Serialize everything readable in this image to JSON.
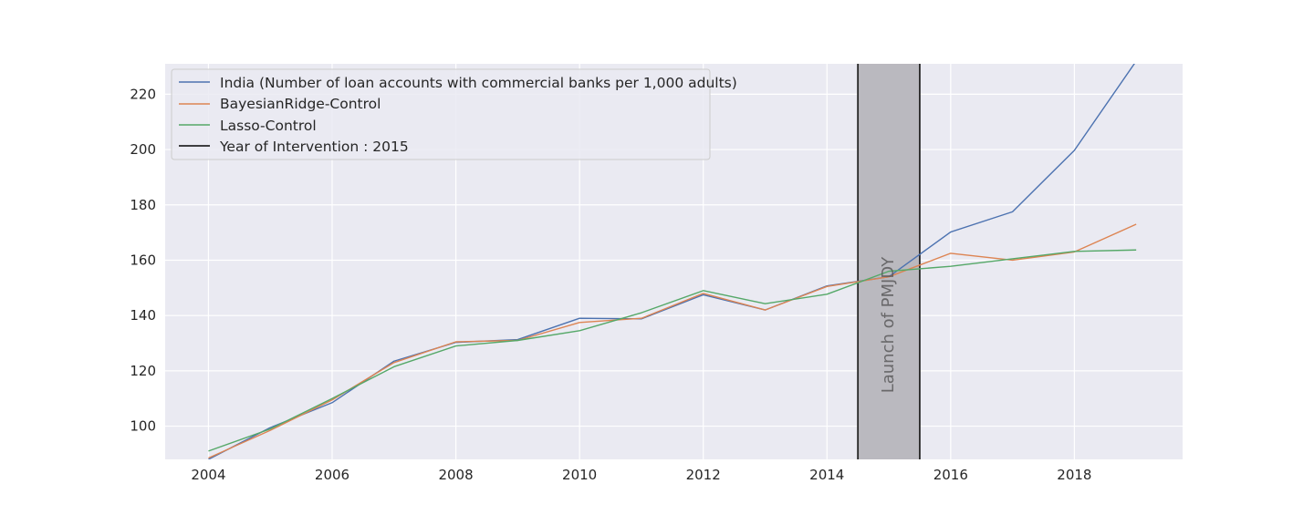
{
  "chart_data": {
    "type": "line",
    "title": "",
    "xlabel": "",
    "ylabel": "",
    "xlim": [
      2003.3,
      2019.75
    ],
    "ylim": [
      88,
      231
    ],
    "x_ticks": [
      "2004",
      "2006",
      "2008",
      "2010",
      "2012",
      "2014",
      "2016",
      "2018"
    ],
    "y_ticks": [
      "100",
      "120",
      "140",
      "160",
      "180",
      "200",
      "220"
    ],
    "grid": true,
    "legend_position": "top-left",
    "x": [
      2004,
      2005,
      2006,
      2007,
      2008,
      2009,
      2010,
      2011,
      2012,
      2013,
      2014,
      2015,
      2016,
      2017,
      2018,
      2019
    ],
    "series": [
      {
        "name": "India (Number of loan accounts with commercial banks per 1,000 adults)",
        "color": "#4c72b0",
        "values": [
          88,
          99.5,
          108.5,
          123.5,
          130.3,
          131.3,
          139,
          138.8,
          147.5,
          142,
          150.7,
          154,
          170.2,
          177.5,
          199.7,
          232
        ]
      },
      {
        "name": "BayesianRidge-Control",
        "color": "#dd8452",
        "values": [
          88.5,
          98.5,
          109.5,
          123,
          130.5,
          131,
          137.5,
          139,
          148,
          142,
          150.5,
          154,
          162.5,
          160,
          163,
          173
        ]
      },
      {
        "name": "Lasso-Control",
        "color": "#55a868",
        "values": [
          91,
          99,
          110,
          121.5,
          129,
          131,
          134.5,
          141,
          149,
          144.3,
          147.7,
          156,
          157.8,
          160.5,
          163.2,
          163.7
        ]
      }
    ],
    "intervention": {
      "label": "Year of Intervention : 2015",
      "color": "#262626",
      "x_start": 2014.5,
      "x_end": 2015.5,
      "band_color": "#bab9bf",
      "annotation": "Launch of PMJDY"
    }
  }
}
